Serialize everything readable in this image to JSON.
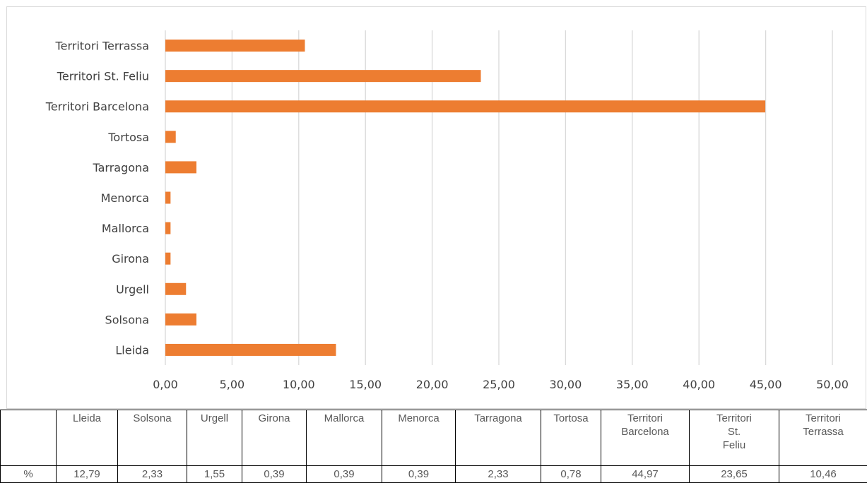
{
  "chart_data": {
    "type": "bar",
    "orientation": "horizontal",
    "categories": [
      "Lleida",
      "Solsona",
      "Urgell",
      "Girona",
      "Mallorca",
      "Menorca",
      "Tarragona",
      "Tortosa",
      "Territori Barcelona",
      "Territori St. Feliu",
      "Territori Terrassa"
    ],
    "series": [
      {
        "name": "%",
        "values": [
          12.79,
          2.33,
          1.55,
          0.39,
          0.39,
          0.39,
          2.33,
          0.78,
          44.97,
          23.65,
          10.46
        ]
      }
    ],
    "value_labels": [
      "12,79",
      "2,33",
      "1,55",
      "0,39",
      "0,39",
      "0,39",
      "2,33",
      "0,78",
      "44,97",
      "23,65",
      "10,46"
    ],
    "xlim": [
      0,
      50
    ],
    "x_ticks": [
      "0,00",
      "5,00",
      "10,00",
      "15,00",
      "20,00",
      "25,00",
      "30,00",
      "35,00",
      "40,00",
      "45,00",
      "50,00"
    ],
    "grid": true,
    "bar_color": "#ED7D31",
    "gridline_color": "#d9d9d9"
  },
  "table": {
    "row_label": "%",
    "header_cells": [
      [
        "Lleida"
      ],
      [
        "Solsona"
      ],
      [
        "Urgell"
      ],
      [
        "Girona"
      ],
      [
        "Mallorca"
      ],
      [
        "Menorca"
      ],
      [
        "Tarragona"
      ],
      [
        "Tortosa"
      ],
      [
        "Territori",
        "Barcelona"
      ],
      [
        "Territori",
        "St.",
        "Feliu"
      ],
      [
        "Territori",
        "Terrassa"
      ]
    ]
  }
}
